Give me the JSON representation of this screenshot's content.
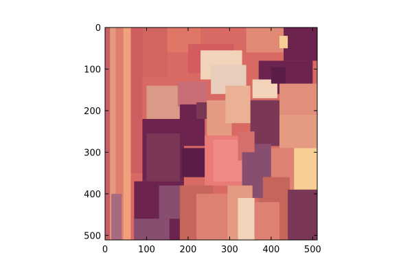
{
  "chart_data": {
    "type": "heatmap",
    "title": "",
    "xlabel": "",
    "ylabel": "",
    "xlim": [
      0,
      511
    ],
    "ylim": [
      511,
      0
    ],
    "x_ticks": [
      0,
      100,
      200,
      300,
      400,
      500
    ],
    "y_ticks": [
      0,
      100,
      200,
      300,
      400,
      500
    ],
    "grid": false,
    "legend": "none",
    "image_extent": {
      "x_min": 0,
      "x_max": 511,
      "y_min": 0,
      "y_max": 511
    },
    "colors": {
      "background": "#d96a63",
      "palette": [
        "#5a1d47",
        "#6c244e",
        "#7a3856",
        "#874e70",
        "#b9535b",
        "#c6665b",
        "#d56f6b",
        "#dd8273",
        "#e59b81",
        "#eab195",
        "#f0c2a9",
        "#f2d2b9",
        "#f7cf95"
      ]
    },
    "patches": [
      {
        "x": 0,
        "y": 0,
        "w": 12,
        "h": 511,
        "color": "#c65f66"
      },
      {
        "x": 12,
        "y": 0,
        "w": 14,
        "h": 511,
        "color": "#e59b81"
      },
      {
        "x": 26,
        "y": 0,
        "w": 18,
        "h": 511,
        "color": "#de7f6d"
      },
      {
        "x": 44,
        "y": 0,
        "w": 18,
        "h": 511,
        "color": "#f0a07c"
      },
      {
        "x": 62,
        "y": 0,
        "w": 28,
        "h": 350,
        "color": "#cf5e60"
      },
      {
        "x": 90,
        "y": 0,
        "w": 60,
        "h": 120,
        "color": "#d36561"
      },
      {
        "x": 150,
        "y": 0,
        "w": 80,
        "h": 60,
        "color": "#e07766"
      },
      {
        "x": 200,
        "y": 40,
        "w": 110,
        "h": 70,
        "color": "#d35c60"
      },
      {
        "x": 230,
        "y": 55,
        "w": 100,
        "h": 70,
        "color": "#f2d2b9"
      },
      {
        "x": 255,
        "y": 90,
        "w": 85,
        "h": 70,
        "color": "#e8ccbc"
      },
      {
        "x": 340,
        "y": 0,
        "w": 90,
        "h": 60,
        "color": "#e08a75"
      },
      {
        "x": 430,
        "y": 0,
        "w": 81,
        "h": 80,
        "color": "#6c244e"
      },
      {
        "x": 420,
        "y": 20,
        "w": 20,
        "h": 30,
        "color": "#f7cf95"
      },
      {
        "x": 370,
        "y": 80,
        "w": 130,
        "h": 80,
        "color": "#6c244e"
      },
      {
        "x": 355,
        "y": 125,
        "w": 60,
        "h": 45,
        "color": "#f2d2b9"
      },
      {
        "x": 400,
        "y": 95,
        "w": 35,
        "h": 40,
        "color": "#5a1d47"
      },
      {
        "x": 420,
        "y": 135,
        "w": 91,
        "h": 75,
        "color": "#e08f7a"
      },
      {
        "x": 350,
        "y": 175,
        "w": 70,
        "h": 110,
        "color": "#7a3856"
      },
      {
        "x": 420,
        "y": 210,
        "w": 91,
        "h": 80,
        "color": "#e59b81"
      },
      {
        "x": 455,
        "y": 290,
        "w": 56,
        "h": 100,
        "color": "#f7cf95"
      },
      {
        "x": 330,
        "y": 280,
        "w": 70,
        "h": 80,
        "color": "#874e70"
      },
      {
        "x": 400,
        "y": 290,
        "w": 55,
        "h": 110,
        "color": "#dd8273"
      },
      {
        "x": 370,
        "y": 360,
        "w": 75,
        "h": 151,
        "color": "#c6665b"
      },
      {
        "x": 440,
        "y": 390,
        "w": 71,
        "h": 121,
        "color": "#7a3856"
      },
      {
        "x": 100,
        "y": 140,
        "w": 80,
        "h": 80,
        "color": "#d99a88"
      },
      {
        "x": 175,
        "y": 130,
        "w": 70,
        "h": 60,
        "color": "#c96e77"
      },
      {
        "x": 180,
        "y": 185,
        "w": 60,
        "h": 100,
        "color": "#6c244e"
      },
      {
        "x": 220,
        "y": 180,
        "w": 40,
        "h": 40,
        "color": "#7a3856"
      },
      {
        "x": 245,
        "y": 175,
        "w": 60,
        "h": 85,
        "color": "#e59b81"
      },
      {
        "x": 290,
        "y": 140,
        "w": 60,
        "h": 90,
        "color": "#eab195"
      },
      {
        "x": 90,
        "y": 220,
        "w": 100,
        "h": 150,
        "color": "#6c244e"
      },
      {
        "x": 100,
        "y": 255,
        "w": 80,
        "h": 120,
        "color": "#7a3856"
      },
      {
        "x": 185,
        "y": 290,
        "w": 60,
        "h": 70,
        "color": "#5a1d47"
      },
      {
        "x": 240,
        "y": 260,
        "w": 100,
        "h": 120,
        "color": "#e97c79"
      },
      {
        "x": 260,
        "y": 270,
        "w": 70,
        "h": 100,
        "color": "#f08a86"
      },
      {
        "x": 320,
        "y": 250,
        "w": 40,
        "h": 70,
        "color": "#d56f6b"
      },
      {
        "x": 330,
        "y": 300,
        "w": 50,
        "h": 110,
        "color": "#874e70"
      },
      {
        "x": 70,
        "y": 370,
        "w": 120,
        "h": 141,
        "color": "#6c244e"
      },
      {
        "x": 70,
        "y": 460,
        "w": 85,
        "h": 51,
        "color": "#874e70"
      },
      {
        "x": 130,
        "y": 380,
        "w": 60,
        "h": 80,
        "color": "#874e70"
      },
      {
        "x": 180,
        "y": 380,
        "w": 80,
        "h": 131,
        "color": "#c6665b"
      },
      {
        "x": 220,
        "y": 400,
        "w": 90,
        "h": 111,
        "color": "#dd8273"
      },
      {
        "x": 295,
        "y": 380,
        "w": 60,
        "h": 131,
        "color": "#e59b81"
      },
      {
        "x": 320,
        "y": 410,
        "w": 40,
        "h": 101,
        "color": "#f2d2b9"
      },
      {
        "x": 360,
        "y": 420,
        "w": 60,
        "h": 91,
        "color": "#dd8273"
      },
      {
        "x": 15,
        "y": 400,
        "w": 25,
        "h": 111,
        "color": "#a86a80"
      }
    ]
  }
}
